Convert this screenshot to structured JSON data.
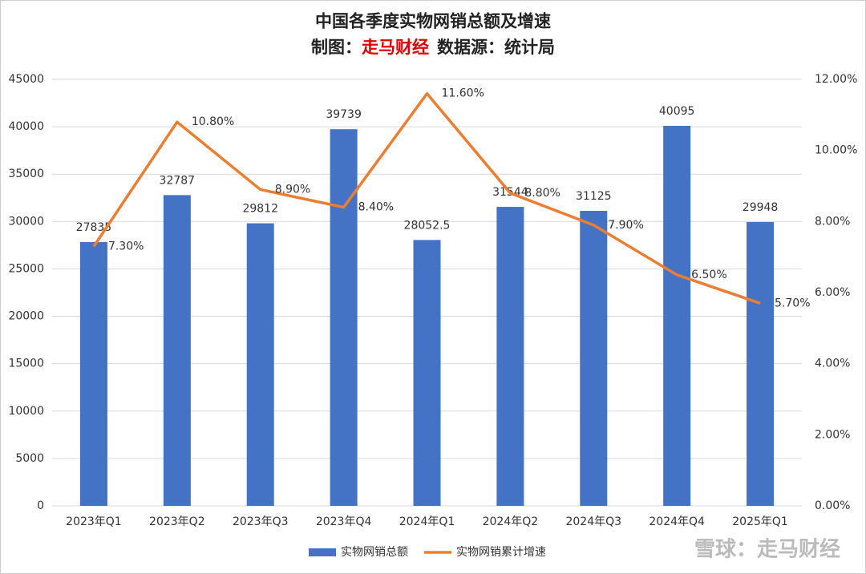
{
  "chart_data": {
    "type": "combo",
    "title": "中国各季度实物网销总额及增速",
    "subtitle_parts": [
      "制图：",
      "走马财经",
      "数据源：统计局"
    ],
    "categories": [
      "2023年Q1",
      "2023年Q2",
      "2023年Q3",
      "2023年Q4",
      "2024年Q1",
      "2024年Q2",
      "2024年Q3",
      "2024年Q4",
      "2025年Q1"
    ],
    "series": [
      {
        "name": "实物网销总额",
        "type": "bar",
        "color": "#4472c4",
        "values": [
          27835,
          32787,
          29812,
          39739,
          28052.5,
          31544,
          31125,
          40095,
          29948
        ]
      },
      {
        "name": "实物网销累计增速",
        "type": "line",
        "axis": "y2",
        "color": "#ed7d31",
        "values": [
          7.3,
          10.8,
          8.9,
          8.4,
          11.6,
          8.8,
          7.9,
          6.5,
          5.7
        ],
        "value_labels": [
          "7.30%",
          "10.80%",
          "8.90%",
          "8.40%",
          "11.60%",
          "8.80%",
          "7.90%",
          "6.50%",
          "5.70%"
        ]
      }
    ],
    "ylim": [
      0,
      45000
    ],
    "yticks": [
      0,
      5000,
      10000,
      15000,
      20000,
      25000,
      30000,
      35000,
      40000,
      45000
    ],
    "y2lim": [
      0,
      12
    ],
    "y2ticks": [
      {
        "value": 0,
        "label": "0.00%"
      },
      {
        "value": 2,
        "label": "2.00%"
      },
      {
        "value": 4,
        "label": "4.00%"
      },
      {
        "value": 6,
        "label": "6.00%"
      },
      {
        "value": 8,
        "label": "8.00%"
      },
      {
        "value": 10,
        "label": "10.00%"
      },
      {
        "value": 12,
        "label": "12.00%"
      }
    ],
    "grid": true,
    "legend": "bottom"
  },
  "watermark": "雪球：走马财经"
}
